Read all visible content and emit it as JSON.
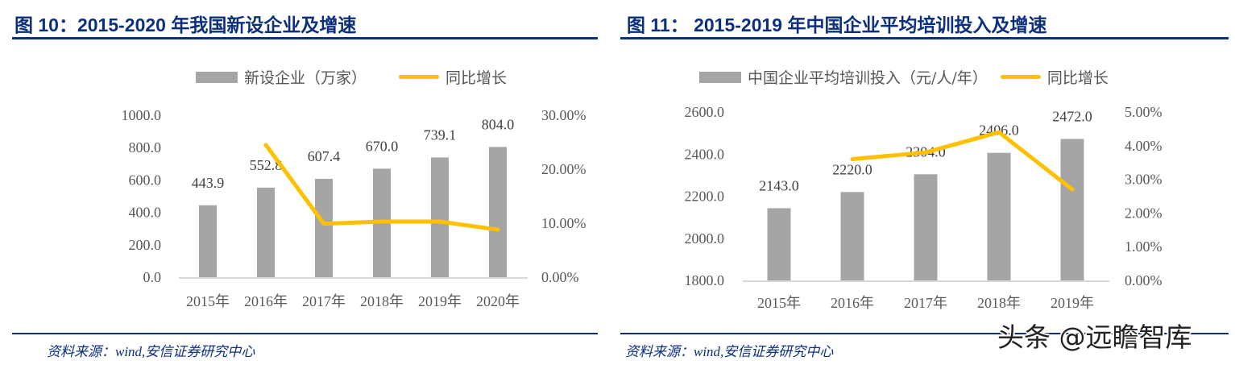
{
  "colors": {
    "title": "#0c2f7e",
    "bar": "#a5a5a5",
    "line": "#ffc000",
    "axis": "#d9d9d9",
    "text": "#595959"
  },
  "left": {
    "title": "图 10：2015-2020 年我国新设企业及增速",
    "source": "资料来源：wind,安信证券研究中心"
  },
  "right": {
    "title": "图 11：  2015-2019 年中国企业平均培训投入及增速",
    "source": "资料来源：wind,安信证券研究中心"
  },
  "watermark": "头条 @远瞻智库",
  "chart_data": [
    {
      "type": "bar+line",
      "title": "",
      "categories": [
        "2015年",
        "2016年",
        "2017年",
        "2018年",
        "2019年",
        "2020年"
      ],
      "series": [
        {
          "name": "新设企业（万家）",
          "type": "bar",
          "axis": "left",
          "values": [
            443.9,
            552.8,
            607.4,
            670.0,
            739.1,
            804.0
          ],
          "labels": [
            "443.9",
            "552.8",
            "607.4",
            "670.0",
            "739.1",
            "804.0"
          ]
        },
        {
          "name": "同比增长",
          "type": "line",
          "axis": "right",
          "values": [
            null,
            24.5,
            9.9,
            10.3,
            10.3,
            8.8
          ]
        }
      ],
      "ylim": [
        0,
        1000
      ],
      "yticks": [
        "0.0",
        "200.0",
        "400.0",
        "600.0",
        "800.0",
        "1000.0"
      ],
      "y2lim": [
        0,
        30
      ],
      "y2ticks": [
        "0.00%",
        "10.00%",
        "20.00%",
        "30.00%"
      ],
      "legend": "top",
      "grid": false
    },
    {
      "type": "bar+line",
      "title": "",
      "categories": [
        "2015年",
        "2016年",
        "2017年",
        "2018年",
        "2019年"
      ],
      "series": [
        {
          "name": "中国企业平均培训投入（元/人/年）",
          "type": "bar",
          "axis": "left",
          "values": [
            2143.0,
            2220.0,
            2304.0,
            2406.0,
            2472.0
          ],
          "labels": [
            "2143.0",
            "2220.0",
            "2304.0",
            "2406.0",
            "2472.0"
          ]
        },
        {
          "name": "同比增长",
          "type": "line",
          "axis": "right",
          "values": [
            null,
            3.6,
            3.8,
            4.4,
            2.7
          ]
        }
      ],
      "ylim": [
        1800,
        2600
      ],
      "yticks": [
        "1800.0",
        "2000.0",
        "2200.0",
        "2400.0",
        "2600.0"
      ],
      "y2lim": [
        0,
        5
      ],
      "y2ticks": [
        "0.00%",
        "1.00%",
        "2.00%",
        "3.00%",
        "4.00%",
        "5.00%"
      ],
      "legend": "top",
      "grid": false
    }
  ]
}
